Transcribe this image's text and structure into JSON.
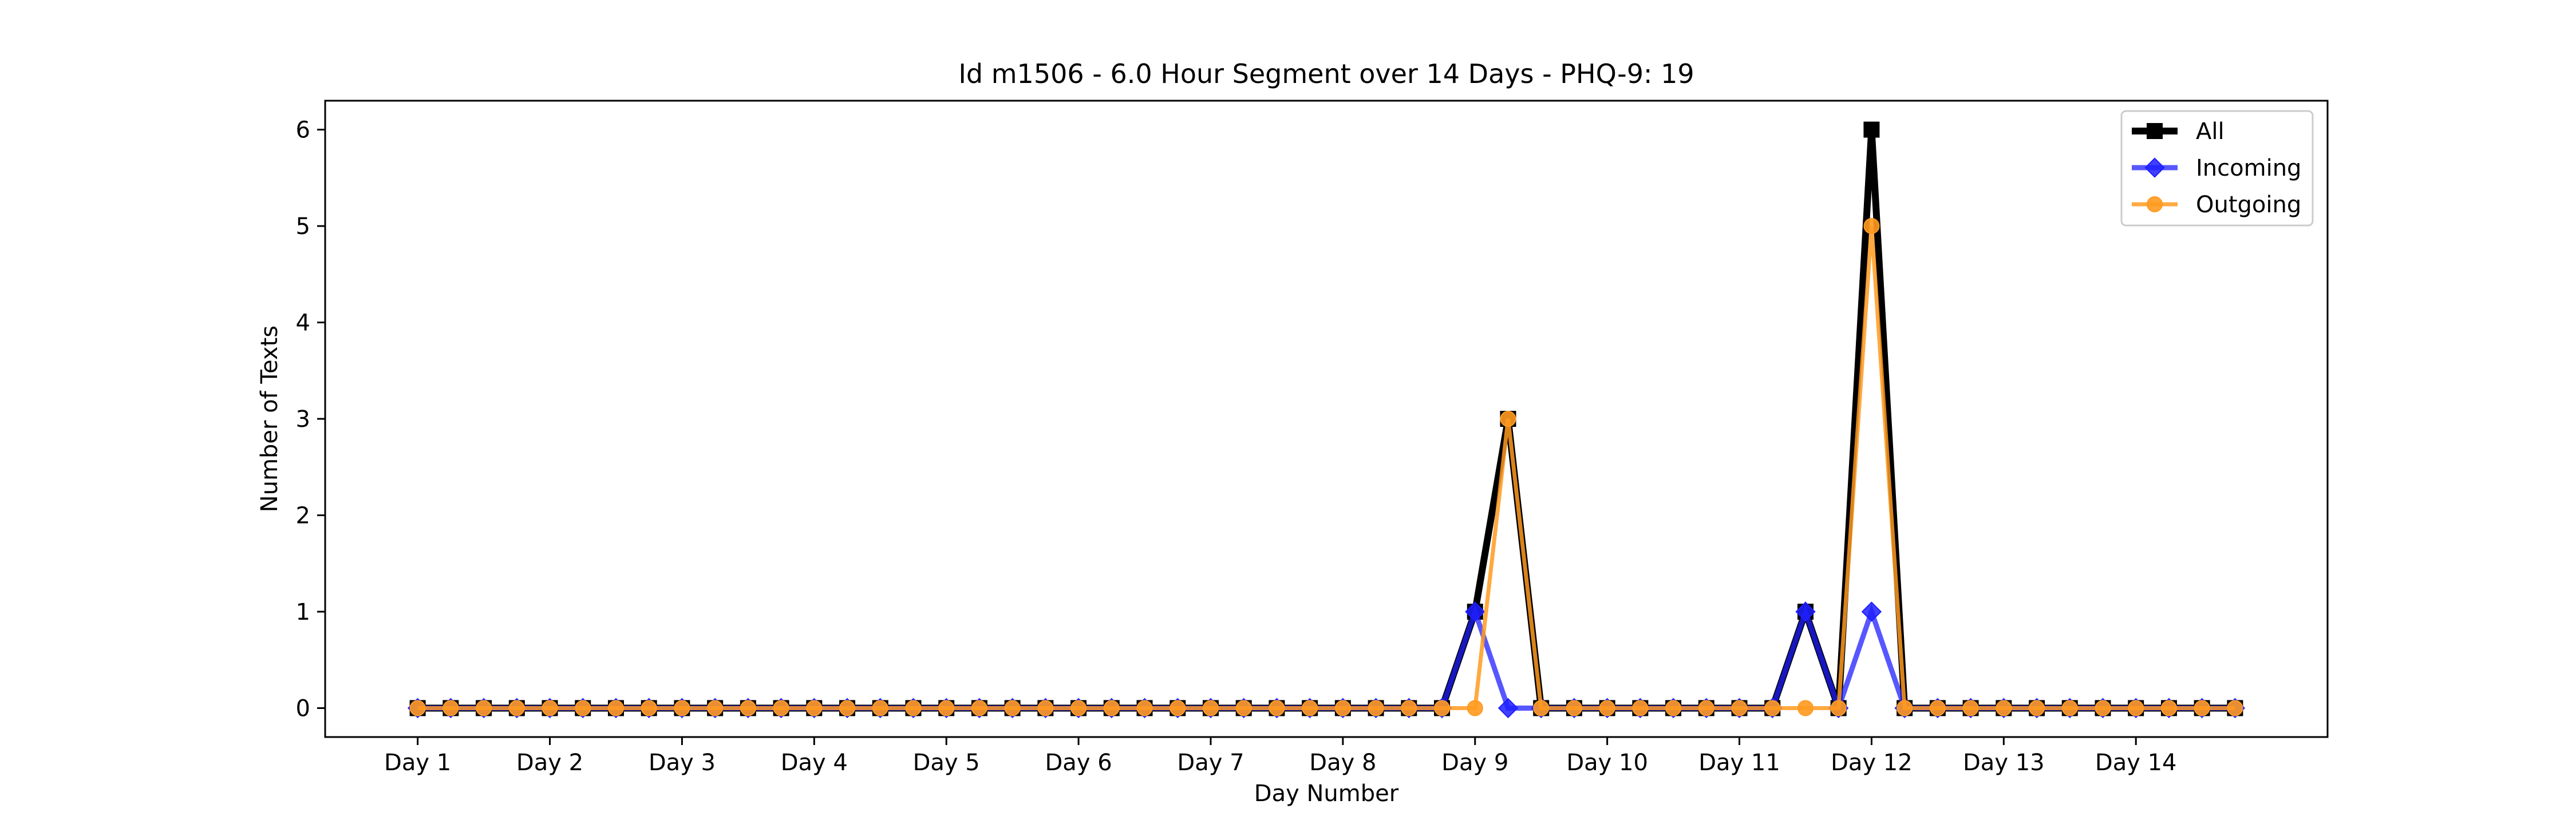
{
  "chart_data": {
    "type": "line",
    "title": "Id m1506 - 6.0 Hour Segment over 14 Days - PHQ-9: 19",
    "xlabel": "Day Number",
    "ylabel": "Number of Texts",
    "xticks": [
      "Day 1",
      "Day 2",
      "Day 3",
      "Day 4",
      "Day 5",
      "Day 6",
      "Day 7",
      "Day 8",
      "Day 9",
      "Day 10",
      "Day 11",
      "Day 12",
      "Day 13",
      "Day 14"
    ],
    "yticks": [
      0,
      1,
      2,
      3,
      4,
      5,
      6
    ],
    "ylim": [
      -0.3,
      6.3
    ],
    "grid": false,
    "legend_position": "top-right",
    "x": [
      0,
      0.25,
      0.5,
      0.75,
      1,
      1.25,
      1.5,
      1.75,
      2,
      2.25,
      2.5,
      2.75,
      3,
      3.25,
      3.5,
      3.75,
      4,
      4.25,
      4.5,
      4.75,
      5,
      5.25,
      5.5,
      5.75,
      6,
      6.25,
      6.5,
      6.75,
      7,
      7.25,
      7.5,
      7.75,
      8,
      8.25,
      8.5,
      8.75,
      9,
      9.25,
      9.5,
      9.75,
      10,
      10.25,
      10.5,
      10.75,
      11,
      11.25,
      11.5,
      11.75,
      12,
      12.25,
      12.5,
      12.75,
      13,
      13.25,
      13.5,
      13.75
    ],
    "series": [
      {
        "name": "All",
        "color": "#000000",
        "marker": "square",
        "values": [
          0,
          0,
          0,
          0,
          0,
          0,
          0,
          0,
          0,
          0,
          0,
          0,
          0,
          0,
          0,
          0,
          0,
          0,
          0,
          0,
          0,
          0,
          0,
          0,
          0,
          0,
          0,
          0,
          0,
          0,
          0,
          0,
          1,
          3,
          0,
          0,
          0,
          0,
          0,
          0,
          0,
          0,
          1,
          0,
          6,
          0,
          0,
          0,
          0,
          0,
          0,
          0,
          0,
          0,
          0,
          0
        ]
      },
      {
        "name": "Incoming",
        "color": "#1f1fff",
        "marker": "diamond",
        "values": [
          0,
          0,
          0,
          0,
          0,
          0,
          0,
          0,
          0,
          0,
          0,
          0,
          0,
          0,
          0,
          0,
          0,
          0,
          0,
          0,
          0,
          0,
          0,
          0,
          0,
          0,
          0,
          0,
          0,
          0,
          0,
          0,
          1,
          0,
          0,
          0,
          0,
          0,
          0,
          0,
          0,
          0,
          1,
          0,
          1,
          0,
          0,
          0,
          0,
          0,
          0,
          0,
          0,
          0,
          0,
          0
        ]
      },
      {
        "name": "Outgoing",
        "color": "#ff9a1f",
        "marker": "circle",
        "values": [
          0,
          0,
          0,
          0,
          0,
          0,
          0,
          0,
          0,
          0,
          0,
          0,
          0,
          0,
          0,
          0,
          0,
          0,
          0,
          0,
          0,
          0,
          0,
          0,
          0,
          0,
          0,
          0,
          0,
          0,
          0,
          0,
          0,
          3,
          0,
          0,
          0,
          0,
          0,
          0,
          0,
          0,
          0,
          0,
          5,
          0,
          0,
          0,
          0,
          0,
          0,
          0,
          0,
          0,
          0,
          0
        ]
      }
    ]
  }
}
